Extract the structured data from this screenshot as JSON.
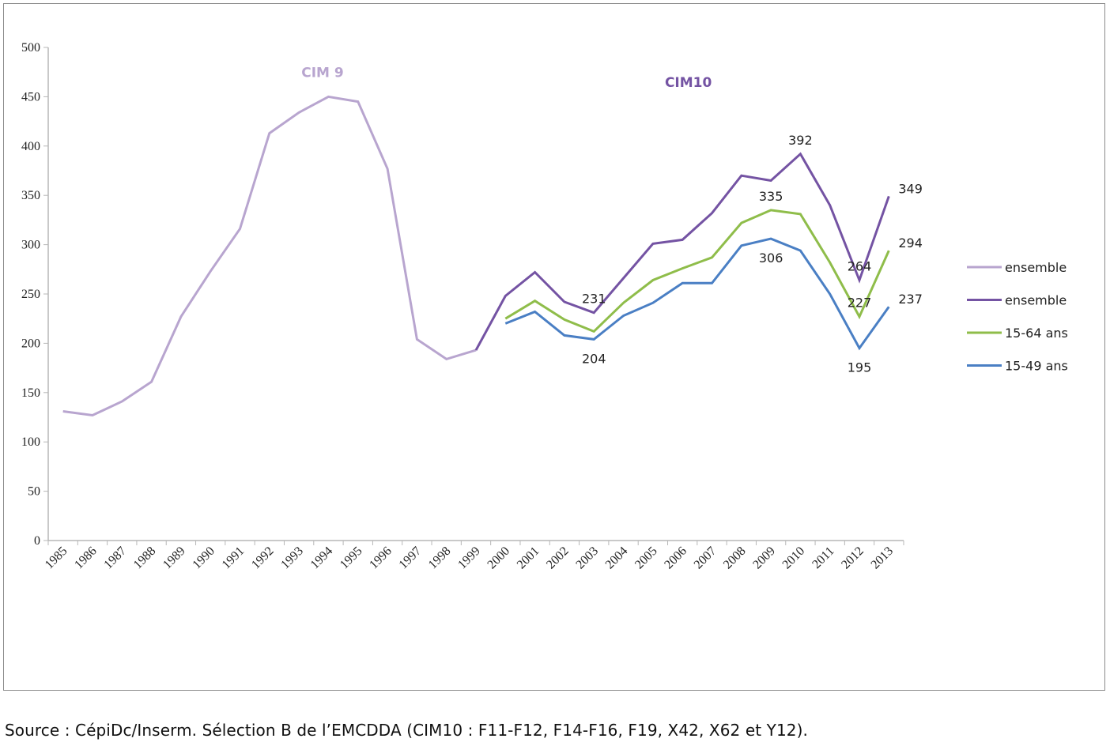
{
  "chart_data": {
    "type": "line",
    "title": "",
    "xlabel": "",
    "ylabel": "",
    "ylim": [
      0,
      500
    ],
    "yticks": [
      0,
      50,
      100,
      150,
      200,
      250,
      300,
      350,
      400,
      450,
      500
    ],
    "grid": false,
    "legend_position": "right",
    "x": [
      1985,
      1986,
      1987,
      1988,
      1989,
      1990,
      1991,
      1992,
      1993,
      1994,
      1995,
      1996,
      1997,
      1998,
      1999,
      2000,
      2001,
      2002,
      2003,
      2004,
      2005,
      2006,
      2007,
      2008,
      2009,
      2010,
      2011,
      2012,
      2013
    ],
    "series": [
      {
        "name": "ensemble",
        "classification": "CIM 9",
        "color": "#b8a5cf",
        "values": [
          131,
          127,
          141,
          161,
          227,
          273,
          316,
          413,
          434,
          450,
          445,
          377,
          204,
          184,
          193,
          null,
          null,
          null,
          null,
          null,
          null,
          null,
          null,
          null,
          null,
          null,
          null,
          null,
          null
        ]
      },
      {
        "name": "ensemble",
        "classification": "CIM10",
        "color": "#7453a3",
        "values": [
          null,
          null,
          null,
          null,
          null,
          null,
          null,
          null,
          null,
          null,
          null,
          null,
          null,
          null,
          193,
          248,
          272,
          242,
          231,
          266,
          301,
          305,
          332,
          370,
          365,
          392,
          340,
          264,
          349
        ]
      },
      {
        "name": "15-64 ans",
        "color": "#8fbd4a",
        "values": [
          null,
          null,
          null,
          null,
          null,
          null,
          null,
          null,
          null,
          null,
          null,
          null,
          null,
          null,
          null,
          225,
          243,
          224,
          212,
          241,
          264,
          276,
          287,
          322,
          335,
          331,
          282,
          227,
          294
        ]
      },
      {
        "name": "15-49 ans",
        "color": "#4a7fc4",
        "values": [
          null,
          null,
          null,
          null,
          null,
          null,
          null,
          null,
          null,
          null,
          null,
          null,
          null,
          null,
          null,
          220,
          232,
          208,
          204,
          228,
          241,
          261,
          261,
          299,
          306,
          294,
          250,
          195,
          237
        ]
      }
    ],
    "data_labels": [
      {
        "series": 1,
        "x": 2003,
        "text": "231",
        "pos": "above"
      },
      {
        "series": 1,
        "x": 2010,
        "text": "392",
        "pos": "above"
      },
      {
        "series": 1,
        "x": 2012,
        "text": "264",
        "pos": "above"
      },
      {
        "series": 1,
        "x": 2013,
        "text": "349",
        "pos": "right"
      },
      {
        "series": 2,
        "x": 2009,
        "text": "335",
        "pos": "above"
      },
      {
        "series": 2,
        "x": 2012,
        "text": "227",
        "pos": "above"
      },
      {
        "series": 2,
        "x": 2013,
        "text": "294",
        "pos": "right"
      },
      {
        "series": 3,
        "x": 2003,
        "text": "204",
        "pos": "below"
      },
      {
        "series": 3,
        "x": 2009,
        "text": "306",
        "pos": "below"
      },
      {
        "series": 3,
        "x": 2012,
        "text": "195",
        "pos": "below"
      },
      {
        "series": 3,
        "x": 2013,
        "text": "237",
        "pos": "right"
      }
    ],
    "annotations": [
      {
        "text": "CIM 9",
        "x": 1993.8,
        "y": 470,
        "color": "#b8a5cf"
      },
      {
        "text": "CIM10",
        "x": 2006.2,
        "y": 460,
        "color": "#7453a3"
      }
    ],
    "legend": [
      {
        "label": "ensemble",
        "color": "#b8a5cf"
      },
      {
        "label": "ensemble",
        "color": "#7453a3"
      },
      {
        "label": "15-64 ans",
        "color": "#8fbd4a"
      },
      {
        "label": "15-49 ans",
        "color": "#4a7fc4"
      }
    ]
  },
  "footer": {
    "source": "Source : CépiDc/Inserm. Sélection B de l’EMCDDA (CIM10 : F11-F12, F14-F16, F19, X42, X62 et Y12)."
  }
}
